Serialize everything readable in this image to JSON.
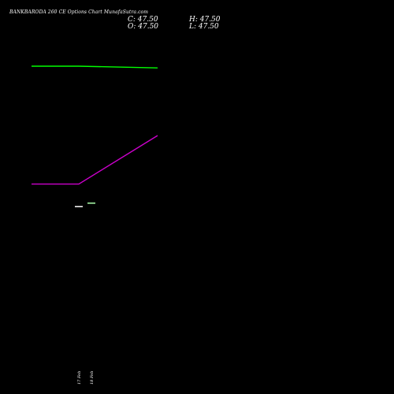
{
  "header": {
    "title": "BANKBARODA 260 CE Options Chart MunafaSutra.com",
    "close_label": "C: 47.50",
    "open_label": "O: 47.50",
    "high_label": "H: 47.50",
    "low_label": "L: 47.50"
  },
  "chart_data": {
    "type": "line",
    "title": "BANKBARODA 260 CE Options Chart MunafaSutra.com",
    "categories": [
      "17 Feb",
      "18 Feb"
    ],
    "series": [
      {
        "color": "#00ff00",
        "points": [
          [
            -0.6,
            0.9
          ],
          [
            0.0,
            0.9
          ],
          [
            1.0,
            0.895
          ]
        ]
      },
      {
        "color": "#cc00cc",
        "points": [
          [
            -0.6,
            0.56
          ],
          [
            0.0,
            0.56
          ],
          [
            1.0,
            0.7
          ]
        ]
      }
    ],
    "candles": [
      {
        "open": 47.5,
        "high": 47.5,
        "low": 47.5,
        "close": 47.5,
        "color": "#ffffff"
      },
      {
        "open": 47.5,
        "high": 47.5,
        "low": 47.5,
        "close": 47.5,
        "color": "#aaffaa"
      }
    ],
    "candle_levels": [
      0.495,
      0.505
    ],
    "grid": false,
    "legend": "none"
  }
}
